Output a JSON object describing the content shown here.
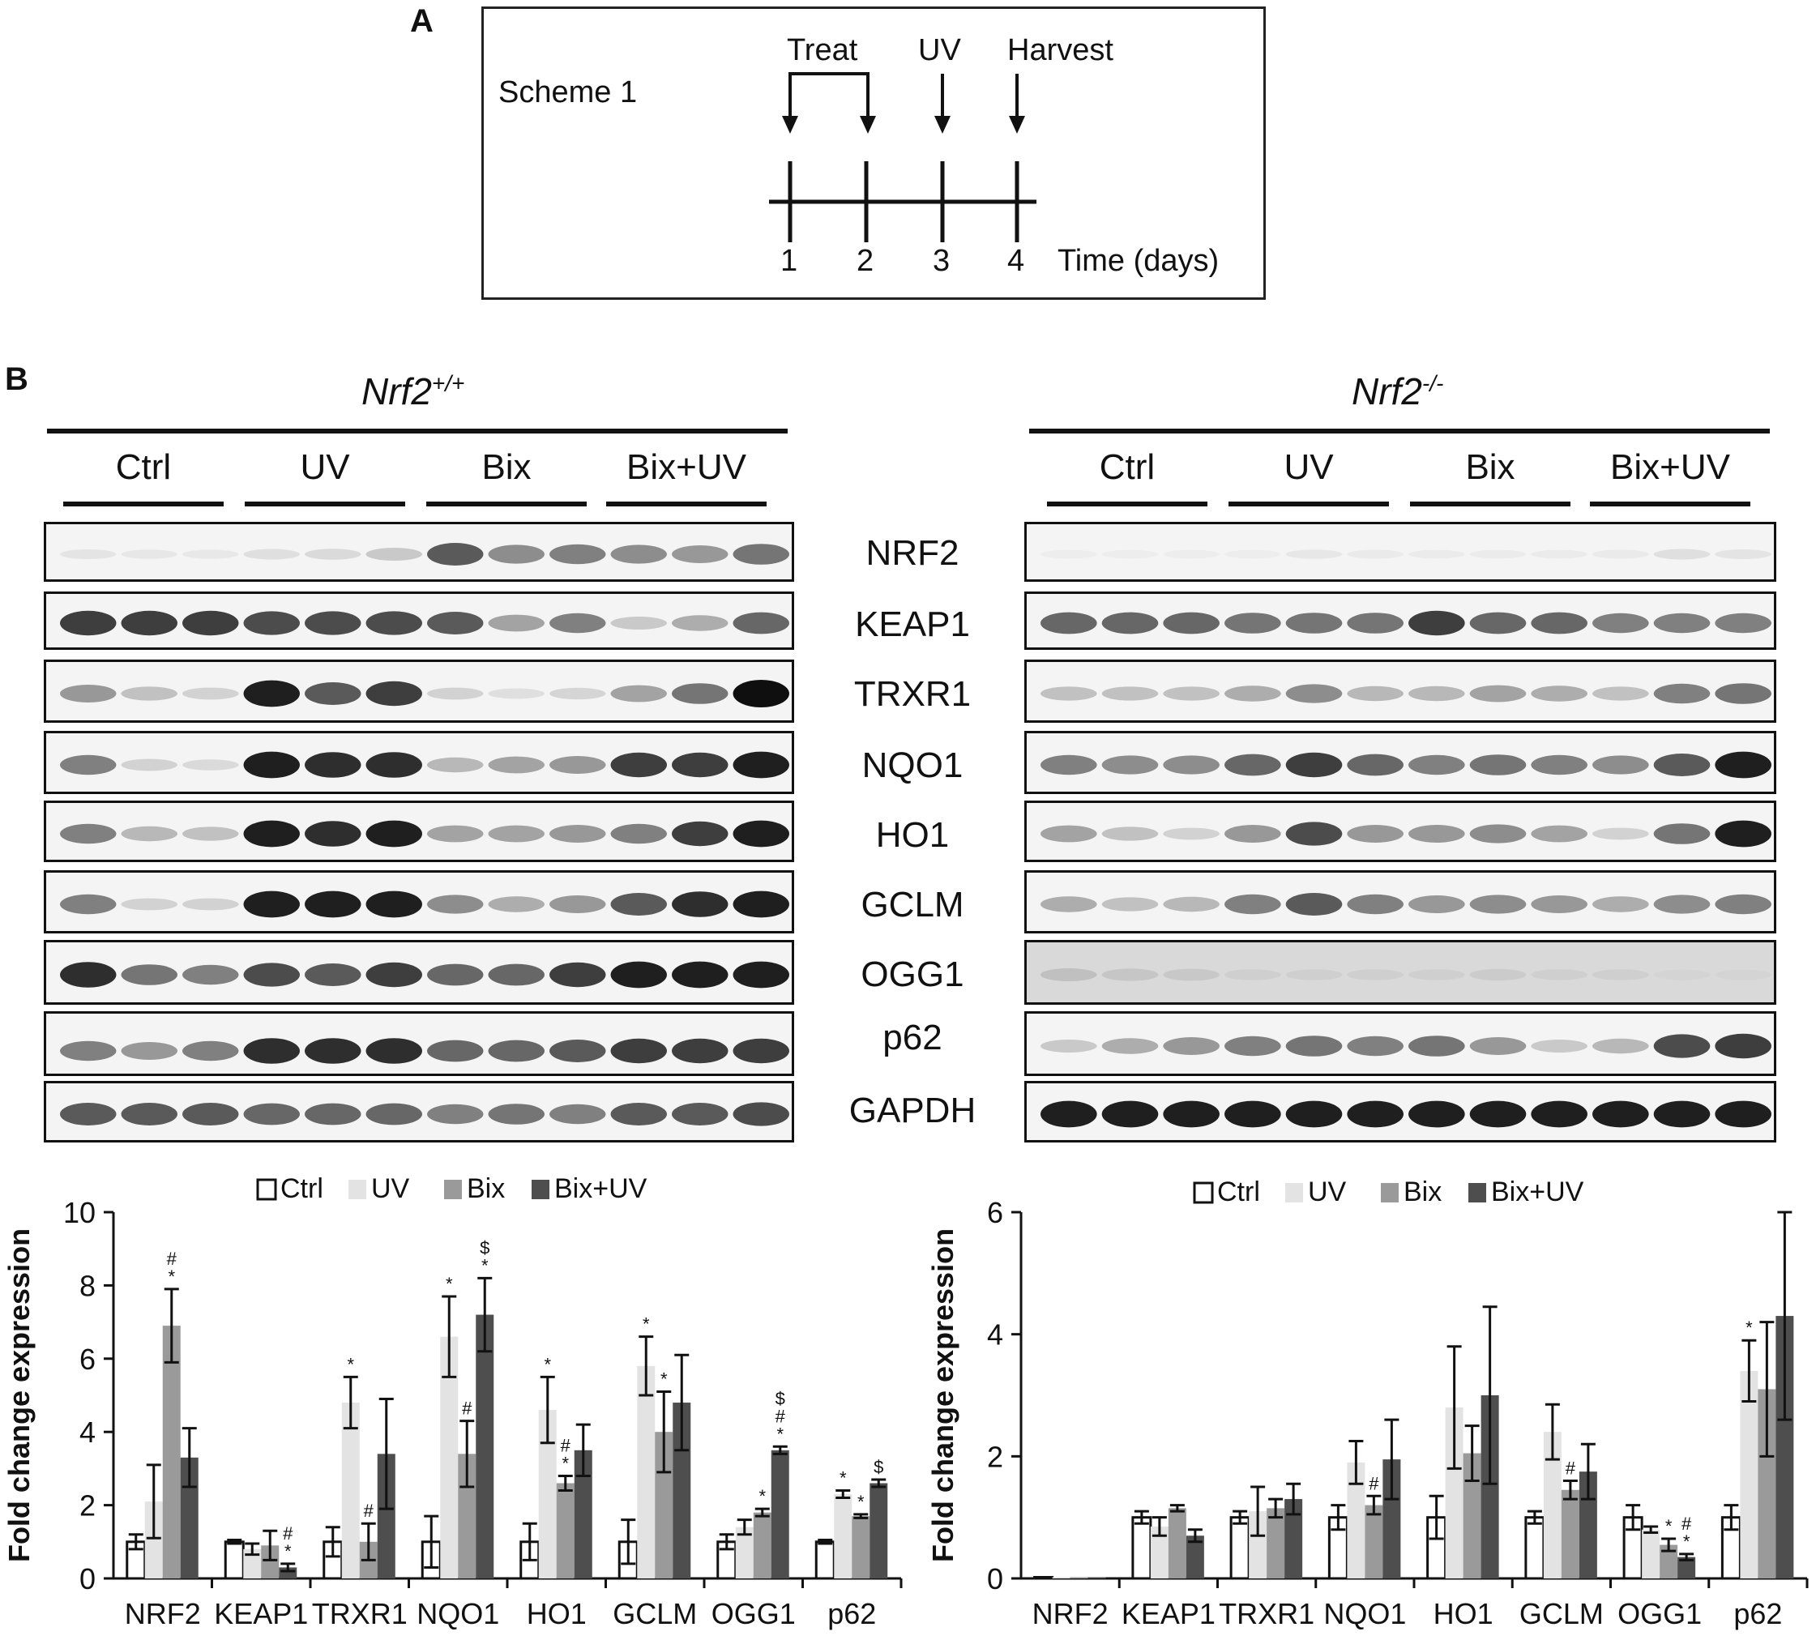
{
  "panel_a": {
    "label": "A",
    "scheme_title": "Scheme 1",
    "events": [
      {
        "label": "Treat"
      },
      {
        "label": "UV"
      },
      {
        "label": "Harvest"
      }
    ],
    "days": [
      "1",
      "2",
      "3",
      "4"
    ],
    "axis_label": "Time (days)"
  },
  "panel_b": {
    "label": "B",
    "genotypes": {
      "left": {
        "base": "Nrf2",
        "sup": "+/+"
      },
      "right": {
        "base": "Nrf2",
        "sup": "-/-"
      }
    },
    "groups": [
      "Ctrl",
      "UV",
      "Bix",
      "Bix+UV"
    ],
    "proteins": [
      "NRF2",
      "KEAP1",
      "TRXR1",
      "NQO1",
      "HO1",
      "GCLM",
      "OGG1",
      "p62",
      "GAPDH"
    ],
    "colors": {
      "ctrl": "#ffffff",
      "uv": "#e3e3e3",
      "bix": "#9a9a9a",
      "bixuv": "#4e4e4e"
    }
  },
  "chart_data": [
    {
      "type": "bar",
      "ylabel": "Fold change expression",
      "ylim": [
        0,
        10
      ],
      "yticks": [
        "0",
        "2",
        "4",
        "6",
        "8",
        "10"
      ],
      "categories": [
        "NRF2",
        "KEAP1",
        "TRXR1",
        "NQO1",
        "HO1",
        "GCLM",
        "OGG1",
        "p62"
      ],
      "legend": [
        "Ctrl",
        "UV",
        "Bix",
        "Bix+UV"
      ],
      "legend_position": "top",
      "series": [
        {
          "name": "Ctrl",
          "values": [
            1.0,
            1.0,
            1.0,
            1.0,
            1.0,
            1.0,
            1.0,
            1.0
          ],
          "err": [
            0.2,
            0.05,
            0.4,
            0.7,
            0.5,
            0.6,
            0.2,
            0.05
          ]
        },
        {
          "name": "UV",
          "values": [
            2.1,
            0.8,
            4.8,
            6.6,
            4.6,
            5.8,
            1.4,
            2.3
          ],
          "err": [
            1.0,
            0.15,
            0.7,
            1.1,
            0.9,
            0.8,
            0.2,
            0.1
          ]
        },
        {
          "name": "Bix",
          "values": [
            6.9,
            0.9,
            1.0,
            3.4,
            2.6,
            4.0,
            1.8,
            1.7
          ],
          "err": [
            1.0,
            0.4,
            0.5,
            0.9,
            0.2,
            1.1,
            0.1,
            0.05
          ]
        },
        {
          "name": "Bix+UV",
          "values": [
            3.3,
            0.3,
            3.4,
            7.2,
            3.5,
            4.8,
            3.5,
            2.6
          ],
          "err": [
            0.8,
            0.1,
            1.5,
            1.0,
            0.7,
            1.3,
            0.1,
            0.1
          ]
        }
      ],
      "annotations": [
        {
          "category": 0,
          "series": 2,
          "marks": [
            "*",
            "#"
          ]
        },
        {
          "category": 1,
          "series": 3,
          "marks": [
            "*",
            "#"
          ]
        },
        {
          "category": 2,
          "series": 1,
          "marks": [
            "*"
          ]
        },
        {
          "category": 2,
          "series": 2,
          "marks": [
            "#"
          ]
        },
        {
          "category": 3,
          "series": 1,
          "marks": [
            "*"
          ]
        },
        {
          "category": 3,
          "series": 2,
          "marks": [
            "#"
          ]
        },
        {
          "category": 3,
          "series": 3,
          "marks": [
            "*",
            "$"
          ]
        },
        {
          "category": 4,
          "series": 1,
          "marks": [
            "*"
          ]
        },
        {
          "category": 4,
          "series": 2,
          "marks": [
            "*",
            "#"
          ]
        },
        {
          "category": 5,
          "series": 1,
          "marks": [
            "*"
          ]
        },
        {
          "category": 5,
          "series": 2,
          "marks": [
            "*"
          ]
        },
        {
          "category": 6,
          "series": 2,
          "marks": [
            "*"
          ]
        },
        {
          "category": 6,
          "series": 3,
          "marks": [
            "*",
            "#",
            "$"
          ]
        },
        {
          "category": 7,
          "series": 1,
          "marks": [
            "*"
          ]
        },
        {
          "category": 7,
          "series": 2,
          "marks": [
            "*"
          ]
        },
        {
          "category": 7,
          "series": 3,
          "marks": [
            "$"
          ]
        }
      ]
    },
    {
      "type": "bar",
      "ylabel": "Fold change expression",
      "ylim": [
        0,
        6
      ],
      "yticks": [
        "0",
        "2",
        "4",
        "6"
      ],
      "categories": [
        "NRF2",
        "KEAP1",
        "TRXR1",
        "NQO1",
        "HO1",
        "GCLM",
        "OGG1",
        "p62"
      ],
      "legend": [
        "Ctrl",
        "UV",
        "Bix",
        "Bix+UV"
      ],
      "legend_position": "top",
      "series": [
        {
          "name": "Ctrl",
          "values": [
            0.02,
            1.0,
            1.0,
            1.0,
            1.0,
            1.0,
            1.0,
            1.0
          ],
          "err": [
            0,
            0.1,
            0.1,
            0.2,
            0.35,
            0.1,
            0.2,
            0.2
          ]
        },
        {
          "name": "UV",
          "values": [
            0.02,
            0.85,
            1.1,
            1.9,
            2.8,
            2.4,
            0.8,
            3.4
          ],
          "err": [
            0,
            0.15,
            0.4,
            0.35,
            1.0,
            0.45,
            0.05,
            0.5
          ]
        },
        {
          "name": "Bix",
          "values": [
            0.02,
            1.15,
            1.15,
            1.2,
            2.05,
            1.45,
            0.55,
            3.1
          ],
          "err": [
            0,
            0.05,
            0.15,
            0.15,
            0.45,
            0.15,
            0.1,
            1.1
          ]
        },
        {
          "name": "Bix+UV",
          "values": [
            0.02,
            0.7,
            1.3,
            1.95,
            3.0,
            1.75,
            0.35,
            4.3
          ],
          "err": [
            0,
            0.1,
            0.25,
            0.65,
            1.45,
            0.45,
            0.05,
            1.7
          ]
        }
      ],
      "annotations": [
        {
          "category": 3,
          "series": 2,
          "marks": [
            "#"
          ]
        },
        {
          "category": 5,
          "series": 2,
          "marks": [
            "#"
          ]
        },
        {
          "category": 6,
          "series": 2,
          "marks": [
            "*"
          ]
        },
        {
          "category": 6,
          "series": 3,
          "marks": [
            "*",
            "#"
          ]
        },
        {
          "category": 7,
          "series": 1,
          "marks": [
            "*"
          ]
        }
      ]
    }
  ]
}
